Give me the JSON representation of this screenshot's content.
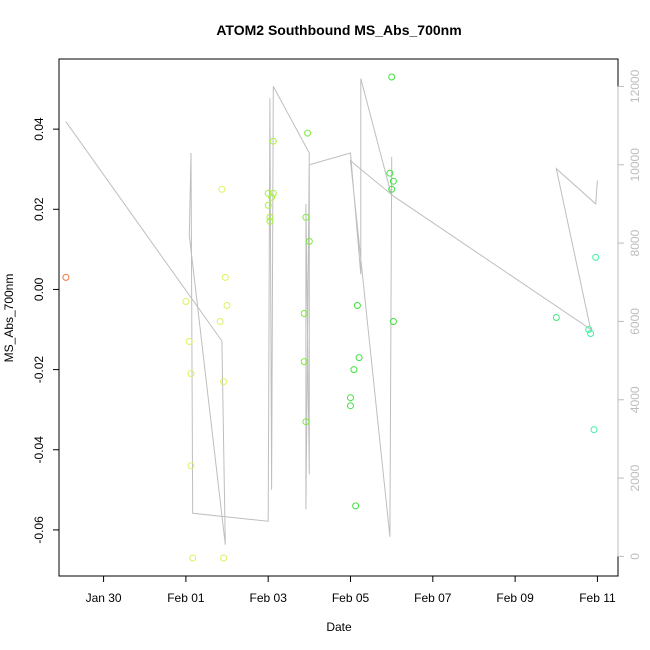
{
  "chart_data": {
    "type": "scatter",
    "title": "ATOM2 Southbound MS_Abs_700nm",
    "xlabel": "Date",
    "ylabel": "MS_Abs_700nm",
    "x_ticks": [
      "Jan 30",
      "Feb 01",
      "Feb 03",
      "Feb 05",
      "Feb 07",
      "Feb 09",
      "Feb 11"
    ],
    "y_ticks": [
      "-0.06",
      "-0.04",
      "-0.02",
      "0.00",
      "0.02",
      "0.04"
    ],
    "y2_ticks": [
      "0",
      "2000",
      "4000",
      "6000",
      "8000",
      "10000",
      "12000"
    ],
    "xlim": [
      "2024-01-28T22:00",
      "2024-02-11T12:00"
    ],
    "ylim": [
      -0.0715,
      0.0575
    ],
    "y2lim": [
      -500,
      12700
    ],
    "points": [
      {
        "x": "2024-01-29T02:00",
        "y": 0.003,
        "color": "#f07840"
      },
      {
        "x": "2024-02-01T00:00",
        "y": -0.003,
        "color": "#e0f060"
      },
      {
        "x": "2024-02-01T02:00",
        "y": -0.013,
        "color": "#e0f060"
      },
      {
        "x": "2024-02-01T03:00",
        "y": -0.021,
        "color": "#e0f060"
      },
      {
        "x": "2024-02-01T03:00",
        "y": -0.044,
        "color": "#e0f060"
      },
      {
        "x": "2024-02-01T04:00",
        "y": -0.067,
        "color": "#e0f060"
      },
      {
        "x": "2024-02-01T20:00",
        "y": -0.008,
        "color": "#e0f060"
      },
      {
        "x": "2024-02-01T21:00",
        "y": 0.025,
        "color": "#e0f060"
      },
      {
        "x": "2024-02-01T22:00",
        "y": -0.067,
        "color": "#e0f060"
      },
      {
        "x": "2024-02-01T22:00",
        "y": -0.023,
        "color": "#e0f060"
      },
      {
        "x": "2024-02-01T23:00",
        "y": 0.003,
        "color": "#e0f060"
      },
      {
        "x": "2024-02-02T00:00",
        "y": -0.004,
        "color": "#e0f060"
      },
      {
        "x": "2024-02-03T00:00",
        "y": 0.024,
        "color": "#a8f040"
      },
      {
        "x": "2024-02-03T00:00",
        "y": 0.021,
        "color": "#a8f040"
      },
      {
        "x": "2024-02-03T01:00",
        "y": 0.017,
        "color": "#a8f040"
      },
      {
        "x": "2024-02-03T01:00",
        "y": 0.018,
        "color": "#a8f040"
      },
      {
        "x": "2024-02-03T02:00",
        "y": 0.023,
        "color": "#a8f040"
      },
      {
        "x": "2024-02-03T03:00",
        "y": 0.037,
        "color": "#a8f040"
      },
      {
        "x": "2024-02-03T03:00",
        "y": 0.024,
        "color": "#a8f040"
      },
      {
        "x": "2024-02-03T21:00",
        "y": -0.006,
        "color": "#7ee840"
      },
      {
        "x": "2024-02-03T21:00",
        "y": -0.018,
        "color": "#7ee840"
      },
      {
        "x": "2024-02-03T22:00",
        "y": -0.033,
        "color": "#7ee840"
      },
      {
        "x": "2024-02-03T22:00",
        "y": 0.018,
        "color": "#7ee840"
      },
      {
        "x": "2024-02-03T23:00",
        "y": 0.039,
        "color": "#7ee840"
      },
      {
        "x": "2024-02-04T00:00",
        "y": 0.012,
        "color": "#7ee840"
      },
      {
        "x": "2024-02-05T00:00",
        "y": -0.027,
        "color": "#40e040"
      },
      {
        "x": "2024-02-05T00:00",
        "y": -0.029,
        "color": "#40e040"
      },
      {
        "x": "2024-02-05T02:00",
        "y": -0.02,
        "color": "#40e040"
      },
      {
        "x": "2024-02-05T03:00",
        "y": -0.054,
        "color": "#40e040"
      },
      {
        "x": "2024-02-05T04:00",
        "y": -0.004,
        "color": "#40e040"
      },
      {
        "x": "2024-02-05T05:00",
        "y": -0.017,
        "color": "#40e040"
      },
      {
        "x": "2024-02-05T23:00",
        "y": 0.029,
        "color": "#40e040"
      },
      {
        "x": "2024-02-06T00:00",
        "y": 0.025,
        "color": "#40e040"
      },
      {
        "x": "2024-02-06T00:00",
        "y": 0.053,
        "color": "#40e040"
      },
      {
        "x": "2024-02-06T01:00",
        "y": 0.027,
        "color": "#40e040"
      },
      {
        "x": "2024-02-06T01:00",
        "y": -0.008,
        "color": "#40e040"
      },
      {
        "x": "2024-02-10T00:00",
        "y": -0.007,
        "color": "#40e880"
      },
      {
        "x": "2024-02-10T19:00",
        "y": -0.01,
        "color": "#40f0a0"
      },
      {
        "x": "2024-02-10T20:00",
        "y": -0.011,
        "color": "#40f0a0"
      },
      {
        "x": "2024-02-10T22:00",
        "y": -0.035,
        "color": "#40f0a0"
      },
      {
        "x": "2024-02-10T23:00",
        "y": 0.008,
        "color": "#40f0a0"
      }
    ],
    "secondary_line": {
      "color": "#bebebe",
      "points": [
        {
          "x": "2024-01-29T02:00",
          "y2": 11100
        },
        {
          "x": "2024-02-01T21:00",
          "y2": 5500
        },
        {
          "x": "2024-02-01T23:00",
          "y2": 300
        },
        {
          "x": "2024-02-01T02:00",
          "y2": 8200
        },
        {
          "x": "2024-02-01T03:00",
          "y2": 10300
        },
        {
          "x": "2024-02-01T04:00",
          "y2": 1100
        },
        {
          "x": "2024-02-03T00:00",
          "y2": 900
        },
        {
          "x": "2024-02-03T01:00",
          "y2": 11700
        },
        {
          "x": "2024-02-03T02:00",
          "y2": 1700
        },
        {
          "x": "2024-02-03T03:00",
          "y2": 12000
        },
        {
          "x": "2024-02-04T00:00",
          "y2": 10300
        },
        {
          "x": "2024-02-03T22:00",
          "y2": 1200
        },
        {
          "x": "2024-02-03T22:00",
          "y2": 9000
        },
        {
          "x": "2024-02-04T00:00",
          "y2": 2100
        },
        {
          "x": "2024-02-04T00:00",
          "y2": 10000
        },
        {
          "x": "2024-02-05T00:00",
          "y2": 10300
        },
        {
          "x": "2024-02-05T06:00",
          "y2": 7200
        },
        {
          "x": "2024-02-05T06:00",
          "y2": 12200
        },
        {
          "x": "2024-02-06T00:00",
          "y2": 9200
        },
        {
          "x": "2024-02-06T00:00",
          "y2": 10200
        },
        {
          "x": "2024-02-05T23:00",
          "y2": 500
        },
        {
          "x": "2024-02-05T00:00",
          "y2": 10100
        },
        {
          "x": "2024-02-06T01:00",
          "y2": 9200
        },
        {
          "x": "2024-02-10T20:00",
          "y2": 5800
        },
        {
          "x": "2024-02-10T00:00",
          "y2": 9900
        },
        {
          "x": "2024-02-10T23:00",
          "y2": 9000
        },
        {
          "x": "2024-02-11T00:00",
          "y2": 9600
        }
      ]
    },
    "grid": false,
    "legend": "none"
  }
}
